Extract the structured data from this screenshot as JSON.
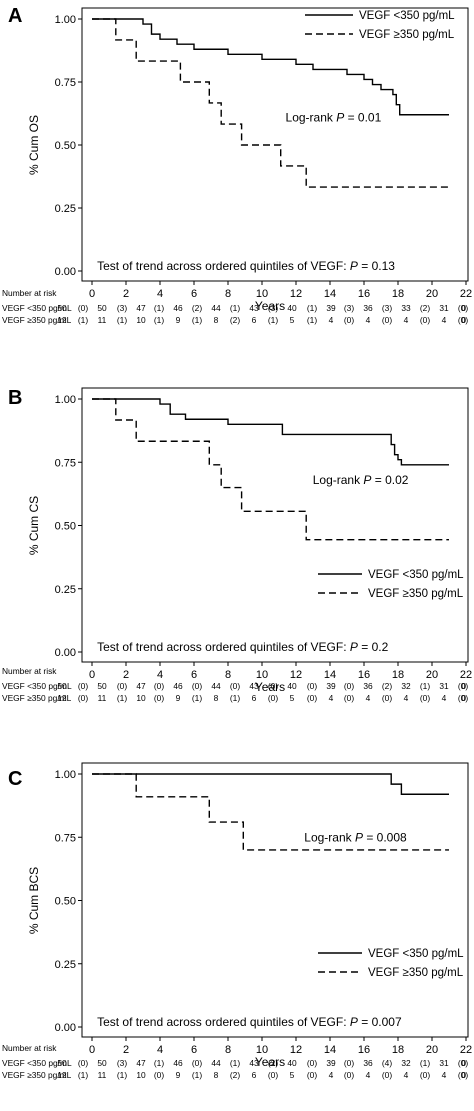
{
  "chart_data": [
    {
      "type": "line",
      "panel": "A",
      "ylabel": "% Cum OS",
      "xlabel": "Years",
      "xlim": [
        0,
        22
      ],
      "ylim": [
        0,
        1
      ],
      "xticks": [
        "0",
        "2",
        "4",
        "6",
        "8",
        "10",
        "12",
        "14",
        "16",
        "18",
        "20",
        "22"
      ],
      "yticks": [
        "0.00",
        "0.25",
        "0.50",
        "0.75",
        "1.00"
      ],
      "legend_position": "top-right",
      "series": [
        {
          "name": "VEGF <350 pg/mL",
          "style": "solid",
          "x": [
            0,
            2.5,
            3,
            3.5,
            4,
            5,
            6,
            7,
            8,
            9,
            10,
            11,
            12,
            13,
            14,
            15,
            16,
            16.5,
            17,
            17.5,
            17.7,
            17.9,
            18.1,
            21
          ],
          "y": [
            1.0,
            1.0,
            0.98,
            0.94,
            0.92,
            0.9,
            0.88,
            0.88,
            0.86,
            0.86,
            0.84,
            0.84,
            0.82,
            0.8,
            0.8,
            0.78,
            0.76,
            0.74,
            0.72,
            0.72,
            0.7,
            0.66,
            0.62,
            0.62
          ]
        },
        {
          "name": "VEGF ≥350 pg/mL",
          "style": "dashed",
          "x": [
            0,
            1.4,
            2.6,
            5.2,
            6.9,
            7.6,
            8.8,
            11.1,
            12.6,
            21
          ],
          "y": [
            1.0,
            0.917,
            0.833,
            0.75,
            0.667,
            0.583,
            0.5,
            0.417,
            0.333,
            0.333
          ]
        }
      ],
      "annotations": [
        {
          "id": "logrank",
          "label": "Log-rank",
          "p": "P = 0.01",
          "x": 14.2,
          "y": 0.61
        },
        {
          "id": "trend",
          "text": "Test of trend across ordered quintiles of VEGF:",
          "p": "P = 0.13",
          "x": 0.3,
          "y": 0.02
        }
      ],
      "risk_table": {
        "header": "Number at risk",
        "rows": [
          {
            "label": "VEGF <350 pg/mL",
            "cells": [
              "50",
              "(0)",
              "50",
              "(3)",
              "47",
              "(1)",
              "46",
              "(2)",
              "44",
              "(1)",
              "43",
              "(3)",
              "40",
              "(1)",
              "39",
              "(3)",
              "36",
              "(3)",
              "33",
              "(2)",
              "31",
              "(0)",
              "0"
            ]
          },
          {
            "label": "VEGF ≥350 pg/mL",
            "cells": [
              "12",
              "(1)",
              "11",
              "(1)",
              "10",
              "(1)",
              "9",
              "(1)",
              "8",
              "(2)",
              "6",
              "(1)",
              "5",
              "(1)",
              "4",
              "(0)",
              "4",
              "(0)",
              "4",
              "(0)",
              "4",
              "(0)",
              "0"
            ]
          }
        ]
      }
    },
    {
      "type": "line",
      "panel": "B",
      "ylabel": "% Cum CS",
      "xlabel": "Years",
      "xlim": [
        0,
        22
      ],
      "ylim": [
        0,
        1
      ],
      "xticks": [
        "0",
        "2",
        "4",
        "6",
        "8",
        "10",
        "12",
        "14",
        "16",
        "18",
        "20",
        "22"
      ],
      "yticks": [
        "0.00",
        "0.25",
        "0.50",
        "0.75",
        "1.00"
      ],
      "legend_position": "center-right",
      "series": [
        {
          "name": "VEGF <350 pg/mL",
          "style": "solid",
          "x": [
            0,
            3.2,
            4.0,
            4.6,
            5.5,
            8.0,
            11.2,
            17.3,
            17.6,
            17.8,
            18.0,
            18.2,
            21
          ],
          "y": [
            1.0,
            1.0,
            0.98,
            0.94,
            0.92,
            0.9,
            0.86,
            0.86,
            0.82,
            0.78,
            0.76,
            0.74,
            0.74
          ]
        },
        {
          "name": "VEGF ≥350 pg/mL",
          "style": "dashed",
          "x": [
            0,
            1.4,
            2.6,
            6.9,
            7.6,
            8.2,
            8.8,
            9.2,
            12.6,
            21
          ],
          "y": [
            1.0,
            0.917,
            0.833,
            0.74,
            0.65,
            0.65,
            0.556,
            0.556,
            0.444,
            0.444
          ]
        }
      ],
      "annotations": [
        {
          "id": "logrank",
          "label": "Log-rank",
          "p": "P = 0.02",
          "x": 15.8,
          "y": 0.68
        },
        {
          "id": "trend",
          "text": "Test of trend across ordered quintiles of VEGF:",
          "p": "P = 0.2",
          "x": 0.3,
          "y": 0.02
        }
      ],
      "risk_table": {
        "header": "Number at risk",
        "rows": [
          {
            "label": "VEGF <350 pg/mL",
            "cells": [
              "50",
              "(0)",
              "50",
              "(0)",
              "47",
              "(0)",
              "46",
              "(0)",
              "44",
              "(0)",
              "43",
              "(0)",
              "40",
              "(0)",
              "39",
              "(0)",
              "36",
              "(2)",
              "32",
              "(1)",
              "31",
              "(0)",
              "0"
            ]
          },
          {
            "label": "VEGF ≥350 pg/mL",
            "cells": [
              "12",
              "(0)",
              "11",
              "(1)",
              "10",
              "(0)",
              "9",
              "(1)",
              "8",
              "(1)",
              "6",
              "(0)",
              "5",
              "(0)",
              "4",
              "(0)",
              "4",
              "(0)",
              "4",
              "(0)",
              "4",
              "(0)",
              "0"
            ]
          }
        ]
      }
    },
    {
      "type": "line",
      "panel": "C",
      "ylabel": "% Cum BCS",
      "xlabel": "Years",
      "xlim": [
        0,
        22
      ],
      "ylim": [
        0,
        1
      ],
      "xticks": [
        "0",
        "2",
        "4",
        "6",
        "8",
        "10",
        "12",
        "14",
        "16",
        "18",
        "20",
        "22"
      ],
      "yticks": [
        "0.00",
        "0.25",
        "0.50",
        "0.75",
        "1.00"
      ],
      "legend_position": "center-right",
      "series": [
        {
          "name": "VEGF <350 pg/mL",
          "style": "solid",
          "x": [
            0,
            17.0,
            17.6,
            18.2,
            21
          ],
          "y": [
            1.0,
            1.0,
            0.96,
            0.92,
            0.92
          ]
        },
        {
          "name": "VEGF ≥350 pg/mL",
          "style": "dashed",
          "x": [
            0,
            2.6,
            6.9,
            8.9,
            21
          ],
          "y": [
            1.0,
            0.91,
            0.81,
            0.7,
            0.7
          ]
        }
      ],
      "annotations": [
        {
          "id": "logrank",
          "label": "Log-rank",
          "p": "P = 0.008",
          "x": 15.5,
          "y": 0.75
        },
        {
          "id": "trend",
          "text": "Test of trend across ordered quintiles of VEGF:",
          "p": "P = 0.007",
          "x": 0.3,
          "y": 0.02
        }
      ],
      "risk_table": {
        "header": "Number at risk",
        "rows": [
          {
            "label": "VEGF <350 pg/mL",
            "cells": [
              "50",
              "(0)",
              "50",
              "(3)",
              "47",
              "(1)",
              "46",
              "(0)",
              "44",
              "(1)",
              "43",
              "(2)",
              "40",
              "(0)",
              "39",
              "(0)",
              "36",
              "(4)",
              "32",
              "(1)",
              "31",
              "(0)",
              "0"
            ]
          },
          {
            "label": "VEGF ≥350 pg/mL",
            "cells": [
              "12",
              "(1)",
              "11",
              "(1)",
              "10",
              "(0)",
              "9",
              "(1)",
              "8",
              "(2)",
              "6",
              "(0)",
              "5",
              "(0)",
              "4",
              "(0)",
              "4",
              "(0)",
              "4",
              "(0)",
              "4",
              "(0)",
              "0"
            ]
          }
        ]
      }
    }
  ]
}
